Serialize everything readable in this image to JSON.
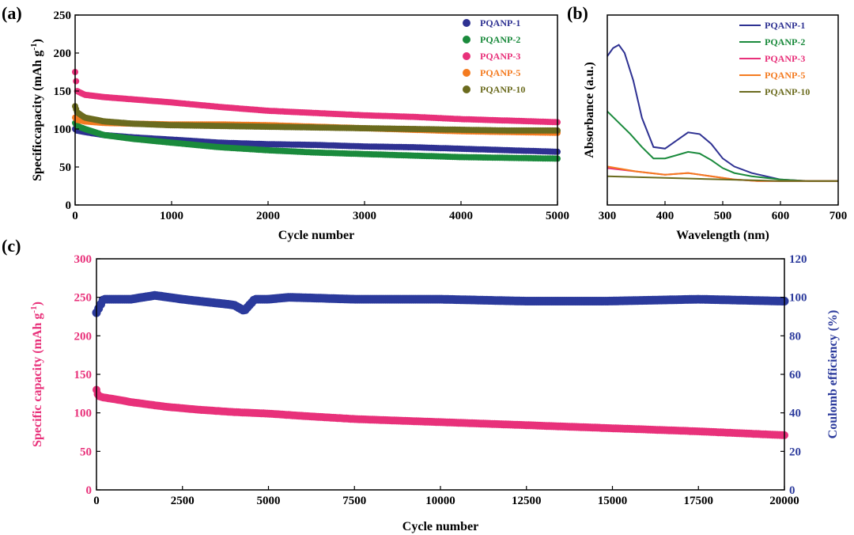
{
  "panel_labels": [
    "(a)",
    "(b)",
    "(c)"
  ],
  "colors": {
    "PQANP-1": "#2e3192",
    "PQANP-2": "#1a8a3c",
    "PQANP-3": "#e8317a",
    "PQANP-5": "#f47b20",
    "PQANP-10": "#6b6b1e",
    "coulomb": "#2b3a9c"
  },
  "chart_data": [
    {
      "id": "a",
      "type": "scatter",
      "title": "",
      "xlabel": "Cycle number",
      "ylabel": "Specificcapacity (mAh g",
      "ylabel_sup": "-1",
      "ylabel_close": ")",
      "xlim": [
        0,
        5000
      ],
      "ylim": [
        0,
        250
      ],
      "xticks": [
        0,
        1000,
        2000,
        3000,
        4000,
        5000
      ],
      "yticks": [
        0,
        50,
        100,
        150,
        200,
        250
      ],
      "legend_position": "top-right",
      "series": [
        {
          "name": "PQANP-1",
          "x": [
            0,
            20,
            100,
            300,
            600,
            1000,
            1500,
            2000,
            2500,
            3000,
            3500,
            4000,
            4500,
            5000
          ],
          "y": [
            100,
            98,
            96,
            92,
            89,
            86,
            82,
            80,
            79,
            77,
            76,
            74,
            72,
            70
          ]
        },
        {
          "name": "PQANP-2",
          "x": [
            0,
            20,
            100,
            300,
            600,
            1000,
            1500,
            2000,
            2500,
            3000,
            3500,
            4000,
            4500,
            5000
          ],
          "y": [
            108,
            104,
            100,
            92,
            87,
            82,
            76,
            72,
            69,
            67,
            65,
            63,
            62,
            61
          ]
        },
        {
          "name": "PQANP-3",
          "x": [
            0,
            20,
            100,
            300,
            600,
            1000,
            1500,
            2000,
            2500,
            3000,
            3500,
            4000,
            4500,
            5000
          ],
          "y": [
            175,
            150,
            145,
            142,
            139,
            135,
            129,
            124,
            121,
            118,
            116,
            113,
            111,
            109
          ]
        },
        {
          "name": "PQANP-5",
          "x": [
            0,
            20,
            100,
            300,
            600,
            1000,
            1500,
            2000,
            2500,
            3000,
            3500,
            4000,
            4500,
            5000
          ],
          "y": [
            115,
            112,
            110,
            108,
            107,
            106,
            106,
            105,
            103,
            101,
            99,
            97,
            96,
            95
          ]
        },
        {
          "name": "PQANP-10",
          "x": [
            0,
            20,
            100,
            300,
            600,
            1000,
            1500,
            2000,
            2500,
            3000,
            3500,
            4000,
            4500,
            5000
          ],
          "y": [
            130,
            122,
            115,
            110,
            107,
            105,
            104,
            103,
            102,
            101,
            100,
            99,
            98,
            98
          ]
        }
      ]
    },
    {
      "id": "b",
      "type": "line",
      "title": "",
      "xlabel": "Wavelength (nm)",
      "ylabel": "Absorbance (a.u.)",
      "xlim": [
        300,
        700
      ],
      "xticks": [
        300,
        400,
        500,
        600,
        700
      ],
      "yticks": [],
      "legend_position": "top-right",
      "series": [
        {
          "name": "PQANP-1",
          "x": [
            300,
            310,
            320,
            330,
            345,
            360,
            380,
            400,
            420,
            440,
            460,
            480,
            500,
            520,
            550,
            600,
            650,
            700
          ],
          "y": [
            0.8,
            0.85,
            0.87,
            0.82,
            0.65,
            0.42,
            0.24,
            0.23,
            0.28,
            0.33,
            0.32,
            0.26,
            0.17,
            0.12,
            0.08,
            0.04,
            0.03,
            0.03
          ]
        },
        {
          "name": "PQANP-2",
          "x": [
            300,
            320,
            340,
            360,
            380,
            400,
            420,
            440,
            460,
            480,
            500,
            520,
            550,
            600,
            650,
            700
          ],
          "y": [
            0.46,
            0.39,
            0.32,
            0.24,
            0.17,
            0.17,
            0.19,
            0.21,
            0.2,
            0.16,
            0.11,
            0.08,
            0.06,
            0.04,
            0.03,
            0.03
          ]
        },
        {
          "name": "PQANP-3",
          "x": [
            300,
            350,
            400,
            440,
            480,
            520,
            560,
            600,
            650,
            700
          ],
          "y": [
            0.11,
            0.09,
            0.07,
            0.08,
            0.06,
            0.04,
            0.03,
            0.03,
            0.03,
            0.03
          ]
        },
        {
          "name": "PQANP-5",
          "x": [
            300,
            350,
            400,
            440,
            480,
            520,
            560,
            600,
            650,
            700
          ],
          "y": [
            0.12,
            0.09,
            0.07,
            0.08,
            0.06,
            0.04,
            0.03,
            0.03,
            0.03,
            0.03
          ]
        },
        {
          "name": "PQANP-10",
          "x": [
            300,
            350,
            400,
            450,
            500,
            550,
            600,
            650,
            700
          ],
          "y": [
            0.06,
            0.055,
            0.05,
            0.045,
            0.04,
            0.035,
            0.03,
            0.03,
            0.03
          ]
        }
      ]
    },
    {
      "id": "c",
      "type": "scatter",
      "title": "",
      "xlabel": "Cycle number",
      "ylabel": "Specific capacity  (mAh g",
      "ylabel_sup": "-1",
      "ylabel_close": ")",
      "y2label": "Coulomb efficiency (%)",
      "xlim": [
        0,
        20000
      ],
      "ylim": [
        0,
        300
      ],
      "y2lim": [
        0,
        120
      ],
      "xticks": [
        0,
        2500,
        5000,
        7500,
        10000,
        12500,
        15000,
        17500,
        20000
      ],
      "yticks": [
        0,
        50,
        100,
        150,
        200,
        250,
        300
      ],
      "y2ticks": [
        0,
        20,
        40,
        60,
        80,
        100,
        120
      ],
      "series": [
        {
          "name": "Specific capacity",
          "axis": "left",
          "x": [
            0,
            50,
            200,
            500,
            1000,
            2000,
            3000,
            4000,
            5000,
            6000,
            7500,
            10000,
            12500,
            15000,
            17500,
            20000
          ],
          "y": [
            130,
            122,
            120,
            118,
            114,
            108,
            104,
            101,
            99,
            96,
            92,
            88,
            84,
            80,
            76,
            71
          ]
        },
        {
          "name": "Coulomb efficiency",
          "axis": "right",
          "x": [
            0,
            200,
            1000,
            1700,
            2500,
            3000,
            3500,
            4000,
            4300,
            4600,
            5000,
            5600,
            7500,
            10000,
            12500,
            14800,
            17500,
            20000
          ],
          "y": [
            92,
            99,
            99,
            101,
            99,
            98,
            97,
            96,
            93,
            99,
            99,
            100,
            99,
            99,
            98,
            98,
            99,
            98
          ]
        }
      ]
    }
  ]
}
